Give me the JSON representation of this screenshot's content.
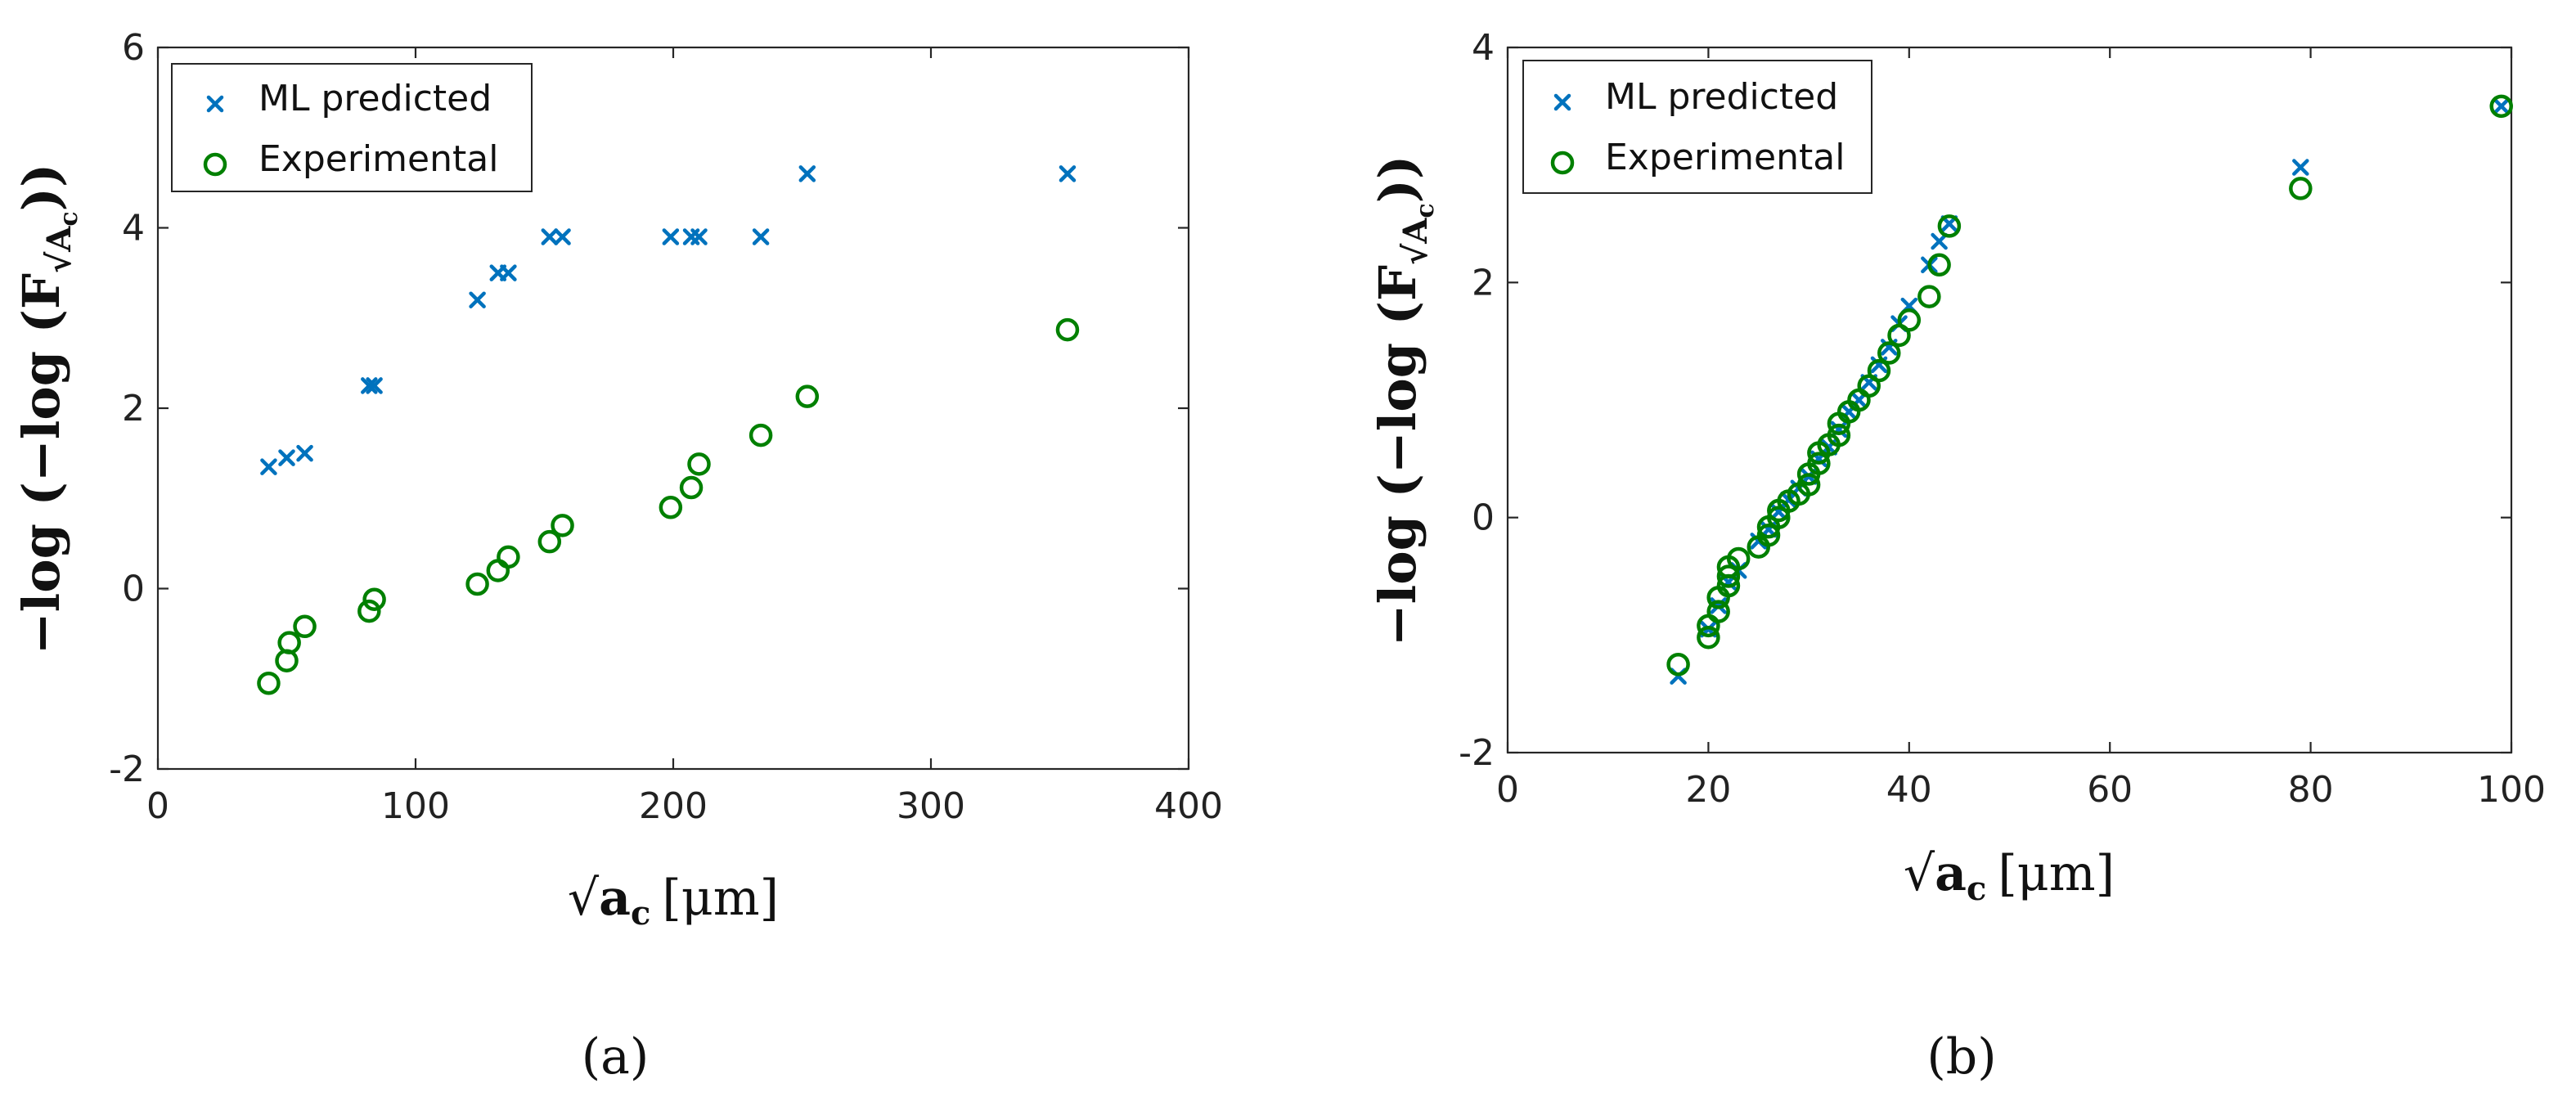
{
  "chart_data": [
    {
      "type": "scatter",
      "panel_label": "(a)",
      "xlabel_radical": "√",
      "xlabel_var": "a",
      "xlabel_sub": "c",
      "xlabel_unit": "[μm]",
      "ylabel_main": "−log (−log (F",
      "ylabel_sub": "√A",
      "ylabel_subsub": "c",
      "ylabel_close": "))",
      "xlim": [
        0,
        400
      ],
      "ylim": [
        -2,
        6
      ],
      "xticks": [
        0,
        100,
        200,
        300,
        400
      ],
      "yticks": [
        -2,
        0,
        2,
        4,
        6
      ],
      "xtick_labels": [
        "0",
        "100",
        "200",
        "300",
        "400"
      ],
      "ytick_labels": [
        "-2",
        "0",
        "2",
        "4",
        "6"
      ],
      "legend_position": "top-left",
      "grid": false,
      "series": [
        {
          "name": "ML predicted",
          "marker": "x",
          "color": "#0072BD",
          "points": [
            [
              43,
              1.35
            ],
            [
              50,
              1.45
            ],
            [
              57,
              1.5
            ],
            [
              82,
              2.25
            ],
            [
              84,
              2.25
            ],
            [
              124,
              3.2
            ],
            [
              132,
              3.5
            ],
            [
              136,
              3.5
            ],
            [
              152,
              3.9
            ],
            [
              157,
              3.9
            ],
            [
              199,
              3.9
            ],
            [
              207,
              3.9
            ],
            [
              210,
              3.9
            ],
            [
              234,
              3.9
            ],
            [
              252,
              4.6
            ],
            [
              353,
              4.6
            ]
          ]
        },
        {
          "name": "Experimental",
          "marker": "o",
          "color": "#008000",
          "points": [
            [
              43,
              -1.05
            ],
            [
              50,
              -0.8
            ],
            [
              51,
              -0.6
            ],
            [
              57,
              -0.42
            ],
            [
              82,
              -0.25
            ],
            [
              84,
              -0.12
            ],
            [
              124,
              0.05
            ],
            [
              132,
              0.2
            ],
            [
              136,
              0.35
            ],
            [
              152,
              0.52
            ],
            [
              157,
              0.7
            ],
            [
              199,
              0.9
            ],
            [
              207,
              1.12
            ],
            [
              210,
              1.38
            ],
            [
              234,
              1.7
            ],
            [
              252,
              2.13
            ],
            [
              353,
              2.87
            ]
          ]
        }
      ]
    },
    {
      "type": "scatter",
      "panel_label": "(b)",
      "xlabel_radical": "√",
      "xlabel_var": "a",
      "xlabel_sub": "c",
      "xlabel_unit": "[μm]",
      "ylabel_main": "−log (−log (F",
      "ylabel_sub": "√A",
      "ylabel_subsub": "c",
      "ylabel_close": "))",
      "xlim": [
        0,
        100
      ],
      "ylim": [
        -2,
        4
      ],
      "xticks": [
        0,
        20,
        40,
        60,
        80,
        100
      ],
      "yticks": [
        -2,
        0,
        2,
        4
      ],
      "xtick_labels": [
        "0",
        "20",
        "40",
        "60",
        "80",
        "100"
      ],
      "ytick_labels": [
        "-2",
        "0",
        "2",
        "4"
      ],
      "legend_position": "top-left",
      "grid": false,
      "series": [
        {
          "name": "ML predicted",
          "marker": "x",
          "color": "#0072BD",
          "points": [
            [
              17,
              -1.35
            ],
            [
              20,
              -0.95
            ],
            [
              21,
              -0.75
            ],
            [
              22,
              -0.55
            ],
            [
              23,
              -0.45
            ],
            [
              25,
              -0.2
            ],
            [
              26,
              -0.1
            ],
            [
              27,
              0.05
            ],
            [
              28,
              0.15
            ],
            [
              29,
              0.25
            ],
            [
              30,
              0.35
            ],
            [
              31,
              0.5
            ],
            [
              32,
              0.6
            ],
            [
              33,
              0.75
            ],
            [
              34,
              0.9
            ],
            [
              35,
              1.0
            ],
            [
              36,
              1.15
            ],
            [
              37,
              1.3
            ],
            [
              38,
              1.45
            ],
            [
              39,
              1.65
            ],
            [
              40,
              1.8
            ],
            [
              42,
              2.15
            ],
            [
              43,
              2.35
            ],
            [
              44,
              2.5
            ],
            [
              79,
              2.98
            ],
            [
              99,
              3.5
            ]
          ]
        },
        {
          "name": "Experimental",
          "marker": "o",
          "color": "#008000",
          "points": [
            [
              17,
              -1.25
            ],
            [
              20,
              -1.02
            ],
            [
              20,
              -0.92
            ],
            [
              21,
              -0.8
            ],
            [
              21,
              -0.68
            ],
            [
              22,
              -0.58
            ],
            [
              22,
              -0.5
            ],
            [
              22,
              -0.42
            ],
            [
              23,
              -0.35
            ],
            [
              25,
              -0.25
            ],
            [
              26,
              -0.15
            ],
            [
              26,
              -0.08
            ],
            [
              27,
              0.0
            ],
            [
              27,
              0.06
            ],
            [
              28,
              0.14
            ],
            [
              29,
              0.2
            ],
            [
              30,
              0.28
            ],
            [
              30,
              0.37
            ],
            [
              31,
              0.46
            ],
            [
              31,
              0.55
            ],
            [
              32,
              0.62
            ],
            [
              33,
              0.7
            ],
            [
              33,
              0.8
            ],
            [
              34,
              0.9
            ],
            [
              35,
              1.0
            ],
            [
              36,
              1.12
            ],
            [
              37,
              1.25
            ],
            [
              38,
              1.4
            ],
            [
              39,
              1.55
            ],
            [
              40,
              1.68
            ],
            [
              42,
              1.88
            ],
            [
              43,
              2.15
            ],
            [
              44,
              2.48
            ],
            [
              79,
              2.8
            ],
            [
              99,
              3.5
            ]
          ]
        }
      ]
    }
  ]
}
